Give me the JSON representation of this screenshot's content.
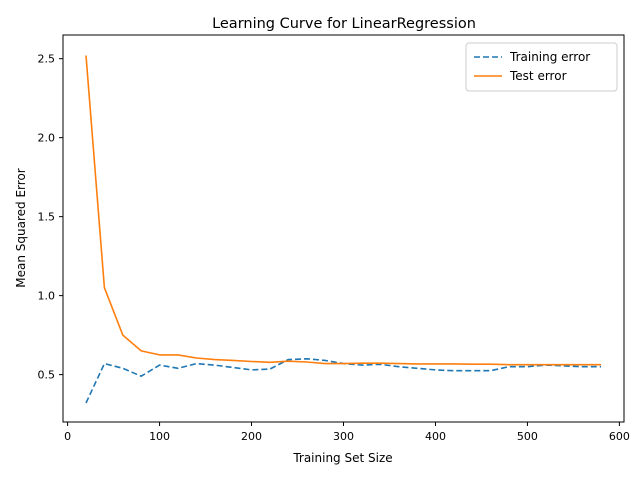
{
  "chart_data": {
    "type": "line",
    "title": "Learning Curve for LinearRegression",
    "xlabel": "Training Set Size",
    "ylabel": "Mean Squared Error",
    "xlim": [
      -5,
      605
    ],
    "ylim": [
      0.2,
      2.65
    ],
    "xticks": [
      0,
      100,
      200,
      300,
      400,
      500,
      600
    ],
    "yticks": [
      0.5,
      1.0,
      1.5,
      2.0,
      2.5
    ],
    "ytick_labels": [
      "0.5",
      "1.0",
      "1.5",
      "2.0",
      "2.5"
    ],
    "legend_position": "top-right",
    "grid": false,
    "x": [
      20,
      40,
      60,
      80,
      100,
      120,
      140,
      160,
      180,
      200,
      220,
      240,
      260,
      280,
      300,
      320,
      340,
      360,
      380,
      400,
      420,
      440,
      460,
      480,
      500,
      520,
      540,
      560,
      580
    ],
    "series": [
      {
        "name": "Training error",
        "color": "#1f77b4",
        "style": "dashed",
        "values": [
          0.32,
          0.57,
          0.54,
          0.49,
          0.56,
          0.54,
          0.57,
          0.56,
          0.545,
          0.53,
          0.535,
          0.595,
          0.6,
          0.59,
          0.57,
          0.56,
          0.565,
          0.55,
          0.54,
          0.53,
          0.525,
          0.525,
          0.525,
          0.55,
          0.55,
          0.56,
          0.555,
          0.55,
          0.55
        ]
      },
      {
        "name": "Test error",
        "color": "#ff7f0e",
        "style": "solid",
        "values": [
          2.52,
          1.05,
          0.75,
          0.65,
          0.625,
          0.625,
          0.605,
          0.595,
          0.59,
          0.583,
          0.578,
          0.585,
          0.58,
          0.57,
          0.57,
          0.572,
          0.572,
          0.57,
          0.568,
          0.568,
          0.568,
          0.566,
          0.566,
          0.563,
          0.563,
          0.563,
          0.563,
          0.563,
          0.563
        ]
      }
    ]
  }
}
